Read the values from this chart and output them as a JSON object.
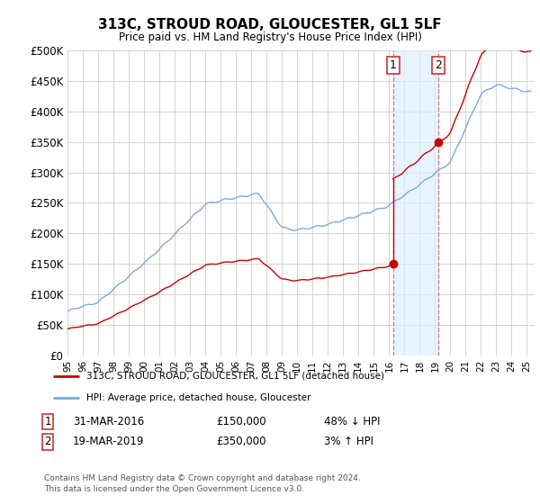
{
  "title": "313C, STROUD ROAD, GLOUCESTER, GL1 5LF",
  "subtitle": "Price paid vs. HM Land Registry's House Price Index (HPI)",
  "ylim": [
    0,
    500000
  ],
  "ytick_values": [
    0,
    50000,
    100000,
    150000,
    200000,
    250000,
    300000,
    350000,
    400000,
    450000,
    500000
  ],
  "ytick_labels": [
    "£0",
    "£50K",
    "£100K",
    "£150K",
    "£200K",
    "£250K",
    "£300K",
    "£350K",
    "£400K",
    "£450K",
    "£500K"
  ],
  "xlim_start": 1995.0,
  "xlim_end": 2025.5,
  "hpi_color": "#7aabdb",
  "price_color": "#cc0000",
  "marker_color": "#cc0000",
  "shade_color": "#ddeeff",
  "purchase1_x": 2016.25,
  "purchase1_y": 150000,
  "purchase2_x": 2019.22,
  "purchase2_y": 350000,
  "legend_entries": [
    "313C, STROUD ROAD, GLOUCESTER, GL1 5LF (detached house)",
    "HPI: Average price, detached house, Gloucester"
  ],
  "table_rows": [
    [
      "1",
      "31-MAR-2016",
      "£150,000",
      "48% ↓ HPI"
    ],
    [
      "2",
      "19-MAR-2019",
      "£350,000",
      "3% ↑ HPI"
    ]
  ],
  "footer": "Contains HM Land Registry data © Crown copyright and database right 2024.\nThis data is licensed under the Open Government Licence v3.0.",
  "background_color": "#ffffff",
  "plot_bg_color": "#ffffff",
  "grid_color": "#cccccc"
}
